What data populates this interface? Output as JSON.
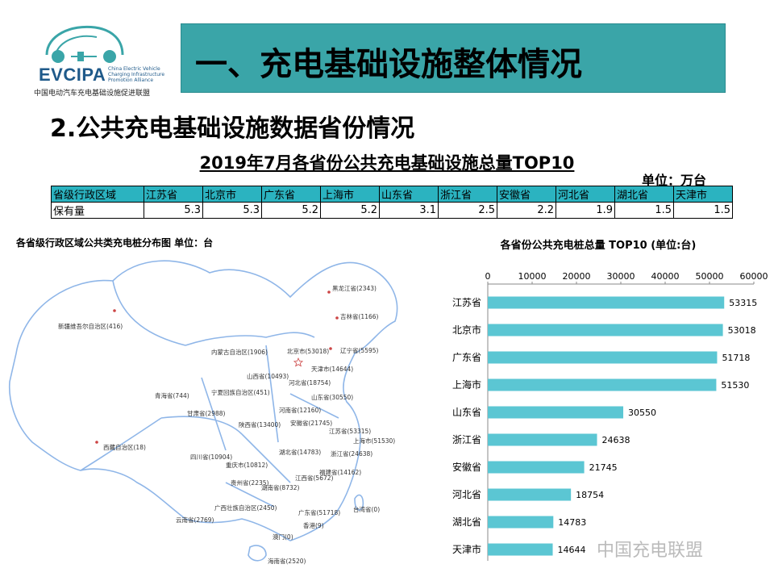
{
  "logo": {
    "word": "EVCIPA",
    "english": "China Electric Vehicle Charging Infrastructure Promotion Alliance",
    "chinese": "中国电动汽车充电基础设施促进联盟"
  },
  "banner": {
    "title": "一、充电基础设施整体情况"
  },
  "section": {
    "title": "2.公共充电基础设施数据省份情况"
  },
  "table": {
    "title": "2019年7月各省份公共充电基础设施总量TOP10",
    "unit": "单位：万台",
    "header_label": "省级行政区域",
    "row_label": "保有量",
    "columns": [
      "江苏省",
      "北京市",
      "广东省",
      "上海市",
      "山东省",
      "浙江省",
      "安徽省",
      "河北省",
      "湖北省",
      "天津市"
    ],
    "values": [
      "5.3",
      "5.3",
      "5.2",
      "5.2",
      "3.1",
      "2.5",
      "2.2",
      "1.9",
      "1.5",
      "1.5"
    ]
  },
  "map": {
    "title": "各省级行政区域公共类充电桩分布图  单位：台",
    "labels": [
      "黑龙江省(2343)",
      "吉林省(1166)",
      "辽宁省(5595)",
      "新疆维吾尔自治区(416)",
      "内蒙古自治区(1906)",
      "北京市(53018)",
      "天津市(14644)",
      "河北省(18754)",
      "山西省(10493)",
      "山东省(30550)",
      "宁夏回族自治区(451)",
      "青海省(744)",
      "甘肃省(2988)",
      "陕西省(13400)",
      "河南省(12160)",
      "江苏省(53315)",
      "安徽省(21745)",
      "上海市(51530)",
      "西藏自治区(18)",
      "四川省(10904)",
      "重庆市(10812)",
      "湖北省(14783)",
      "浙江省(24638)",
      "贵州省(2235)",
      "湖南省(8732)",
      "江西省(5672)",
      "福建省(14162)",
      "广西壮族自治区(2450)",
      "云南省(2769)",
      "广东省(51718)",
      "台湾省(0)",
      "香港(9)",
      "澳门(0)",
      "海南省(2520)"
    ]
  },
  "chart_data": {
    "type": "bar",
    "orientation": "horizontal",
    "title": "各省份公共充电桩总量 TOP10   (单位:台)",
    "categories": [
      "江苏省",
      "北京市",
      "广东省",
      "上海市",
      "山东省",
      "浙江省",
      "安徽省",
      "河北省",
      "湖北省",
      "天津市"
    ],
    "values": [
      53315,
      53018,
      51718,
      51530,
      30550,
      24638,
      21745,
      18754,
      14783,
      14644
    ],
    "xlim": [
      0,
      60000
    ],
    "xticks": [
      "0",
      "10000",
      "20000",
      "30000",
      "40000",
      "50000",
      "60000"
    ],
    "axis_position": "top",
    "grid": false,
    "legend": "none",
    "bar_color": "#5bc6d3"
  },
  "watermark": {
    "text": "中国充电联盟"
  },
  "colors": {
    "banner": "#3aa5a8",
    "table_header": "#2bb3c0",
    "bar": "#5bc6d3",
    "logo": "#1f5a8a"
  }
}
